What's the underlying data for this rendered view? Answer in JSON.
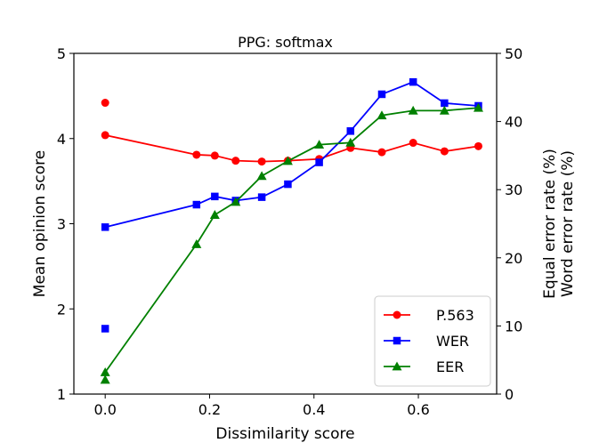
{
  "chart_data": {
    "type": "line",
    "title": "PPG: softmax",
    "xlabel": "Dissimilarity score",
    "ylabel": "Mean opinion score",
    "y2label_lines": [
      "Equal error rate (%)",
      "Word error rate (%)"
    ],
    "xlim": [
      -0.06,
      0.75
    ],
    "ylim": [
      1,
      5
    ],
    "y2lim": [
      0,
      50
    ],
    "xticks": [
      0.0,
      0.2,
      0.4,
      0.6
    ],
    "xtick_labels": [
      "0.0",
      "0.2",
      "0.4",
      "0.6"
    ],
    "yticks": [
      1,
      2,
      3,
      4,
      5
    ],
    "ytick_labels": [
      "1",
      "2",
      "3",
      "4",
      "5"
    ],
    "y2ticks": [
      0,
      10,
      20,
      30,
      40,
      50
    ],
    "y2tick_labels": [
      "0",
      "10",
      "20",
      "30",
      "40",
      "50"
    ],
    "grid": false,
    "legend_position": "lower-right",
    "series": [
      {
        "name": "P.563",
        "axis": "left",
        "marker": "circle",
        "color": "#ff0000",
        "x": [
          0.0,
          0.175,
          0.21,
          0.25,
          0.3,
          0.35,
          0.41,
          0.47,
          0.53,
          0.59,
          0.65,
          0.715
        ],
        "values": [
          4.04,
          3.81,
          3.8,
          3.74,
          3.73,
          3.74,
          3.76,
          3.89,
          3.84,
          3.95,
          3.85,
          3.91
        ],
        "extra_x": [
          0.0
        ],
        "extra_values": [
          4.42
        ]
      },
      {
        "name": "WER",
        "axis": "right",
        "marker": "square",
        "color": "#0000ff",
        "x": [
          0.0,
          0.175,
          0.21,
          0.25,
          0.3,
          0.35,
          0.41,
          0.47,
          0.53,
          0.59,
          0.65,
          0.715
        ],
        "values": [
          24.5,
          27.8,
          29.0,
          28.4,
          28.9,
          30.8,
          34.0,
          38.6,
          44.0,
          45.8,
          42.7,
          42.3
        ],
        "extra_x": [
          0.0
        ],
        "extra_values": [
          9.6
        ]
      },
      {
        "name": "EER",
        "axis": "right",
        "marker": "triangle",
        "color": "#008000",
        "x": [
          0.0,
          0.175,
          0.21,
          0.25,
          0.3,
          0.35,
          0.41,
          0.47,
          0.53,
          0.59,
          0.65,
          0.715
        ],
        "values": [
          3.2,
          22.0,
          26.3,
          28.2,
          32.0,
          34.2,
          36.6,
          36.9,
          40.9,
          41.6,
          41.6,
          42.0
        ],
        "extra_x": [
          0.0
        ],
        "extra_values": [
          2.1
        ]
      }
    ]
  }
}
